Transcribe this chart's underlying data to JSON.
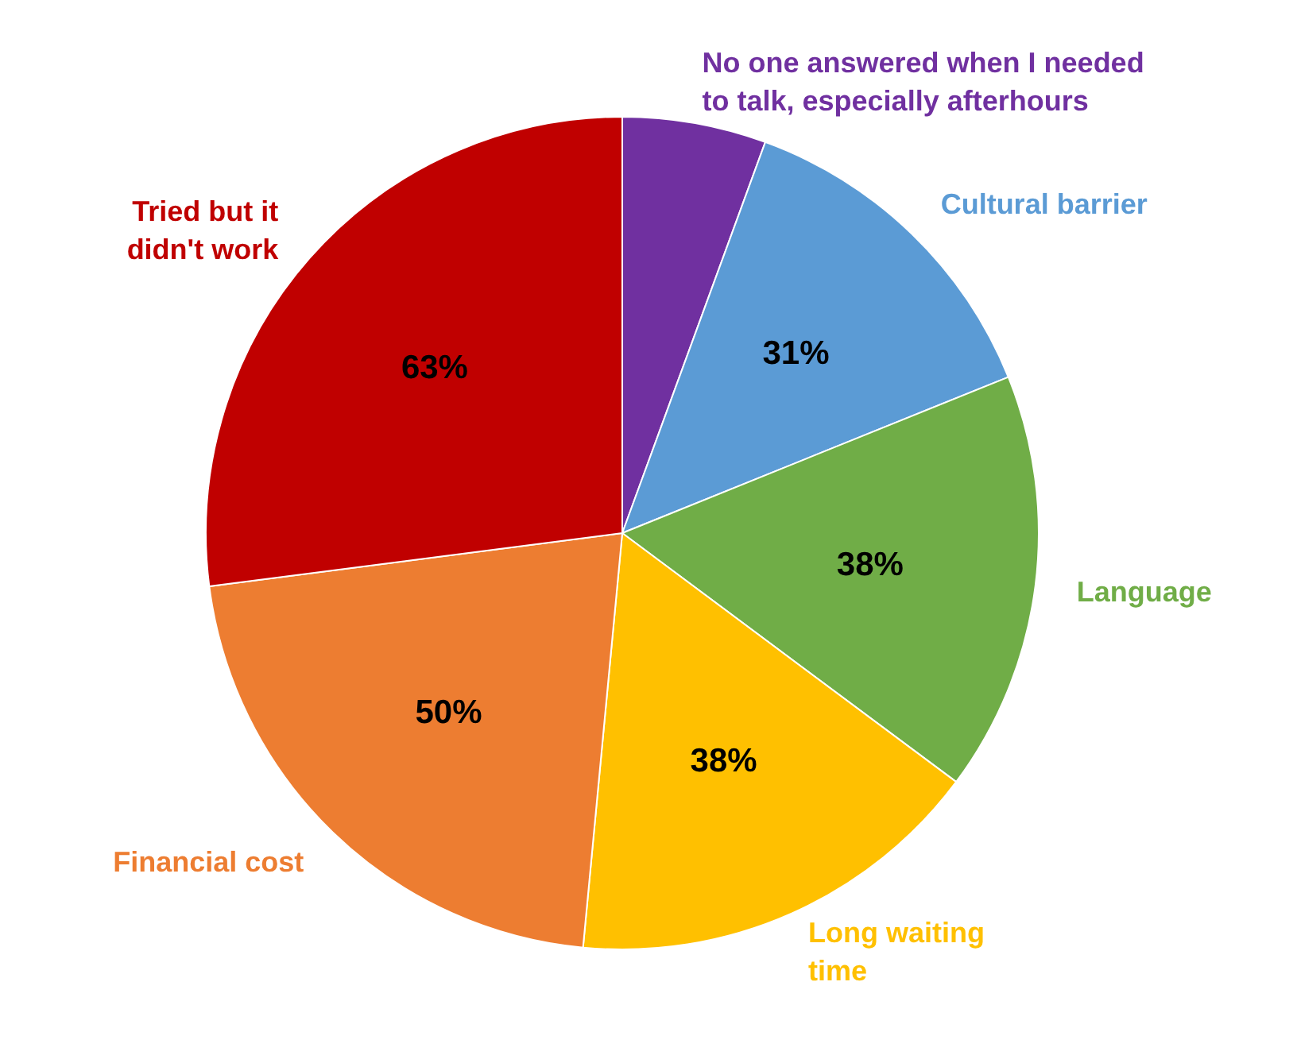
{
  "chart_data": {
    "type": "pie",
    "categories": [
      "No one answered when I needed to talk, especially afterhours",
      "Cultural barrier",
      "Language",
      "Long waiting time",
      "Financial cost",
      "Tried but it didn't work"
    ],
    "values": [
      13,
      31,
      38,
      38,
      50,
      63
    ],
    "value_labels": [
      null,
      "31%",
      "38%",
      "38%",
      "50%",
      "63%"
    ],
    "colors": [
      "#7030a0",
      "#5b9bd5",
      "#70ad47",
      "#ffc000",
      "#ed7d31",
      "#c00000"
    ]
  }
}
